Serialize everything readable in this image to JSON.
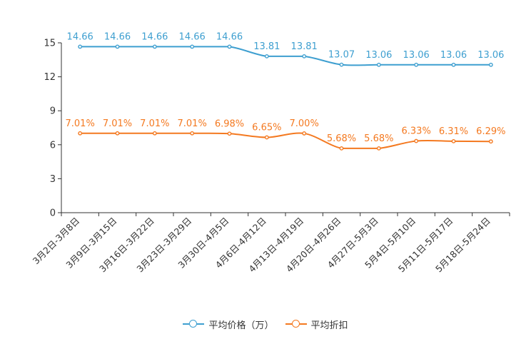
{
  "chart_data": {
    "type": "line",
    "categories": [
      "3月2日-3月8日",
      "3月9日-3月15日",
      "3月16日-3月22日",
      "3月23日-3月29日",
      "3月30日-4月5日",
      "4月6日-4月12日",
      "4月13日-4月19日",
      "4月20日-4月26日",
      "4月27日-5月3日",
      "5月4日-5月10日",
      "5月11日-5月17日",
      "5月18日-5月24日"
    ],
    "series": [
      {
        "name": "平均价格（万）",
        "color": "#3e9fd0",
        "values": [
          14.66,
          14.66,
          14.66,
          14.66,
          14.66,
          13.81,
          13.81,
          13.07,
          13.06,
          13.06,
          13.06,
          13.06
        ],
        "labels": [
          "14.66",
          "14.66",
          "14.66",
          "14.66",
          "14.66",
          "13.81",
          "13.81",
          "13.07",
          "13.06",
          "13.06",
          "13.06",
          "13.06"
        ]
      },
      {
        "name": "平均折扣",
        "color": "#f47920",
        "values": [
          7.01,
          7.01,
          7.01,
          7.01,
          6.98,
          6.65,
          7.0,
          5.68,
          5.68,
          6.33,
          6.31,
          6.29
        ],
        "labels": [
          "7.01%",
          "7.01%",
          "7.01%",
          "7.01%",
          "6.98%",
          "6.65%",
          "7.00%",
          "5.68%",
          "5.68%",
          "6.33%",
          "6.31%",
          "6.29%"
        ]
      }
    ],
    "ylim": [
      0,
      15
    ],
    "yticks": [
      "0",
      "3",
      "6",
      "9",
      "12",
      "15"
    ],
    "title": "",
    "xlabel": "",
    "ylabel": "",
    "legend_position": "bottom-center"
  },
  "legend": {
    "items": [
      {
        "label": "平均价格（万）",
        "color": "#3e9fd0"
      },
      {
        "label": "平均折扣",
        "color": "#f47920"
      }
    ]
  }
}
